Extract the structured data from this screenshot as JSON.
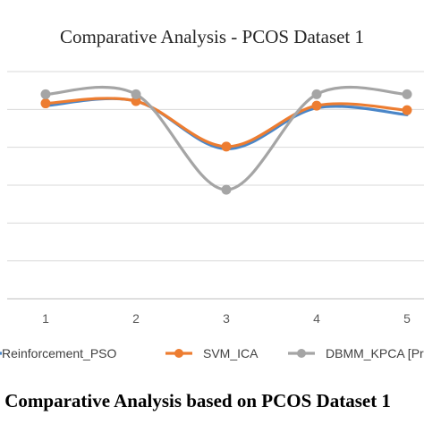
{
  "chart_data": {
    "type": "line",
    "title": "Comparative Analysis  - PCOS Dataset 1",
    "categories": [
      "1",
      "2",
      "3",
      "4",
      "5"
    ],
    "ylim": [
      0,
      1
    ],
    "grid": true,
    "legend_position": "bottom",
    "smooth": true,
    "series": [
      {
        "name": "Reinforcement_PSO",
        "color": "#4a86c8",
        "markers": false,
        "values": [
          0.85,
          0.87,
          0.66,
          0.84,
          0.81
        ]
      },
      {
        "name": "SVM_ICA",
        "color": "#ed7d31",
        "markers": true,
        "values": [
          0.86,
          0.87,
          0.67,
          0.85,
          0.83
        ]
      },
      {
        "name": "DBMM_KPCA [Proposed]",
        "color": "#a5a5a5",
        "markers": true,
        "values": [
          0.9,
          0.9,
          0.48,
          0.9,
          0.9
        ]
      }
    ]
  },
  "caption": ": Comparative Analysis based on PCOS Dataset 1"
}
